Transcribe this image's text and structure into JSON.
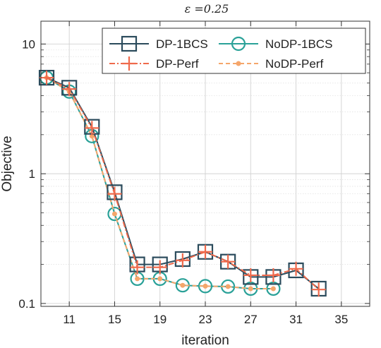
{
  "chart_data": {
    "type": "line",
    "title": "ε =0.25",
    "xlabel": "iteration",
    "ylabel": "Objective",
    "xlim": [
      8.5,
      37.5
    ],
    "ylim": [
      0.095,
      15
    ],
    "yscale": "log",
    "grid": true,
    "legend_position": "top-right",
    "x_ticks": [
      11,
      15,
      19,
      23,
      27,
      31,
      35
    ],
    "y_ticks": [
      0.1,
      1,
      10
    ],
    "y_tick_labels": [
      "0.1",
      "1",
      "10"
    ],
    "series": [
      {
        "name": "DP-1BCS",
        "color": "#2b4b5c",
        "marker": "square",
        "line": "solid",
        "x": [
          9,
          11,
          13,
          15,
          17,
          19,
          21,
          23,
          25,
          27,
          29,
          31,
          33
        ],
        "y": [
          5.5,
          4.6,
          2.3,
          0.72,
          0.2,
          0.2,
          0.22,
          0.25,
          0.21,
          0.16,
          0.16,
          0.18,
          0.13
        ]
      },
      {
        "name": "NoDP-1BCS",
        "color": "#2aa198",
        "marker": "circle",
        "line": "solid",
        "x": [
          9,
          11,
          13,
          15,
          17,
          19,
          21,
          23,
          25,
          27,
          29
        ],
        "y": [
          5.5,
          4.3,
          1.95,
          0.49,
          0.155,
          0.155,
          0.138,
          0.136,
          0.135,
          0.13,
          0.13
        ]
      },
      {
        "name": "DP-Perf",
        "color": "#ef6a4c",
        "marker": "plus",
        "line": "dashdot",
        "x": [
          9,
          11,
          13,
          15,
          17,
          19,
          21,
          23,
          25,
          27,
          29,
          31,
          33
        ],
        "y": [
          5.5,
          4.5,
          2.25,
          0.7,
          0.19,
          0.19,
          0.215,
          0.25,
          0.21,
          0.165,
          0.165,
          0.185,
          0.128
        ]
      },
      {
        "name": "NoDP-Perf",
        "color": "#f5a66b",
        "marker": "dot",
        "line": "dashed",
        "x": [
          9,
          11,
          13,
          15,
          17,
          19,
          21,
          23,
          25,
          27,
          29
        ],
        "y": [
          5.5,
          4.3,
          1.95,
          0.49,
          0.155,
          0.155,
          0.138,
          0.136,
          0.135,
          0.13,
          0.13
        ]
      }
    ]
  }
}
